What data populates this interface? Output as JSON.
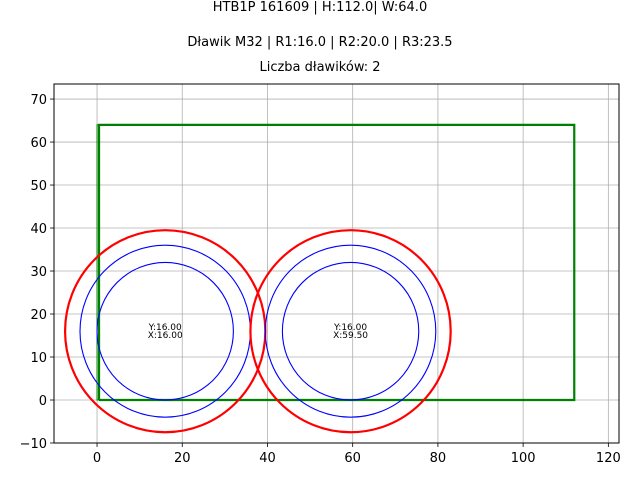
{
  "titles": {
    "line1": "HTB1P 161609 | H:112.0| W:64.0",
    "line2": "Dławik M32 | R1:16.0 | R2:20.0 | R3:23.5",
    "line3": "Liczba dławików: 2"
  },
  "chart_data": {
    "type": "scatter",
    "title": "HTB1P 161609 | H:112.0| W:64.0\nDławik M32 | R1:16.0 | R2:20.0 | R3:23.5\nLiczba dławików: 2",
    "xlabel": "",
    "ylabel": "",
    "xlim": [
      -10.1,
      122.5
    ],
    "ylim": [
      -10,
      73.5
    ],
    "xticks": [
      0,
      20,
      40,
      60,
      80,
      100,
      120
    ],
    "yticks": [
      -10,
      0,
      10,
      20,
      30,
      40,
      50,
      60,
      70
    ],
    "grid": true,
    "rectangle": {
      "x": 0,
      "y": 0,
      "width": 112.0,
      "height": 64.0,
      "color": "#008000"
    },
    "glands": [
      {
        "x": 16.0,
        "y": 16.0,
        "label_y": "Y:16.00",
        "label_x": "X:16.00",
        "radii": [
          {
            "r": 16.0,
            "color": "#0000ff"
          },
          {
            "r": 20.0,
            "color": "#0000ff"
          },
          {
            "r": 23.5,
            "color": "#ff0000"
          }
        ]
      },
      {
        "x": 59.5,
        "y": 16.0,
        "label_y": "Y:16.00",
        "label_x": "X:59.50",
        "radii": [
          {
            "r": 16.0,
            "color": "#0000ff"
          },
          {
            "r": 20.0,
            "color": "#0000ff"
          },
          {
            "r": 23.5,
            "color": "#ff0000"
          }
        ]
      }
    ]
  },
  "colors": {
    "rect": "#008000",
    "inner_circles": "#0000ff",
    "outer_circle": "#ff0000",
    "grid": "#b0b0b0"
  }
}
